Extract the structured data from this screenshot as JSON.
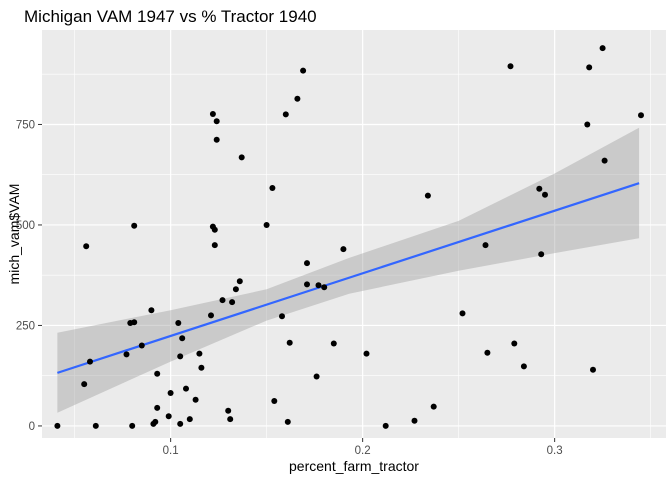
{
  "chart_data": {
    "type": "scatter",
    "title": "Michigan VAM 1947 vs % Tractor 1940",
    "xlabel": "percent_farm_tractor",
    "ylabel": "mich_vam$VAM",
    "xlim": [
      0.033,
      0.358
    ],
    "ylim": [
      -30,
      985
    ],
    "x_ticks": [
      0.1,
      0.2,
      0.3
    ],
    "x_tick_labels": [
      "0.1",
      "0.2",
      "0.3"
    ],
    "y_ticks": [
      0,
      250,
      500,
      750
    ],
    "y_tick_labels": [
      "0",
      "250",
      "500",
      "750"
    ],
    "grid": true,
    "legend": "none",
    "colors": {
      "panel": "#ebebeb",
      "grid_major": "#ffffff",
      "points": "#000000",
      "fit_line": "#3366ff",
      "confidence_band": "#999999"
    },
    "fit": {
      "method": "linear",
      "x": [
        0.041,
        0.344
      ],
      "y": [
        132,
        604
      ],
      "band": {
        "x": [
          0.041,
          0.1,
          0.15,
          0.193,
          0.25,
          0.3,
          0.344
        ],
        "lower": [
          33,
          160,
          262,
          329,
          386,
          430,
          467
        ],
        "upper": [
          232,
          288,
          340,
          418,
          510,
          628,
          742
        ]
      }
    },
    "points": [
      {
        "x": 0.041,
        "y": 0
      },
      {
        "x": 0.055,
        "y": 104
      },
      {
        "x": 0.056,
        "y": 447
      },
      {
        "x": 0.058,
        "y": 160
      },
      {
        "x": 0.061,
        "y": 0
      },
      {
        "x": 0.077,
        "y": 178
      },
      {
        "x": 0.079,
        "y": 256
      },
      {
        "x": 0.08,
        "y": 0
      },
      {
        "x": 0.081,
        "y": 498
      },
      {
        "x": 0.081,
        "y": 258
      },
      {
        "x": 0.085,
        "y": 200
      },
      {
        "x": 0.09,
        "y": 288
      },
      {
        "x": 0.091,
        "y": 5
      },
      {
        "x": 0.092,
        "y": 10
      },
      {
        "x": 0.093,
        "y": 45
      },
      {
        "x": 0.093,
        "y": 130
      },
      {
        "x": 0.099,
        "y": 24
      },
      {
        "x": 0.1,
        "y": 82
      },
      {
        "x": 0.104,
        "y": 256
      },
      {
        "x": 0.105,
        "y": 173
      },
      {
        "x": 0.105,
        "y": 5
      },
      {
        "x": 0.106,
        "y": 218
      },
      {
        "x": 0.108,
        "y": 93
      },
      {
        "x": 0.11,
        "y": 17
      },
      {
        "x": 0.113,
        "y": 65
      },
      {
        "x": 0.115,
        "y": 180
      },
      {
        "x": 0.116,
        "y": 145
      },
      {
        "x": 0.121,
        "y": 275
      },
      {
        "x": 0.122,
        "y": 776
      },
      {
        "x": 0.122,
        "y": 496
      },
      {
        "x": 0.123,
        "y": 450
      },
      {
        "x": 0.123,
        "y": 488
      },
      {
        "x": 0.124,
        "y": 758
      },
      {
        "x": 0.124,
        "y": 712
      },
      {
        "x": 0.127,
        "y": 313
      },
      {
        "x": 0.13,
        "y": 38
      },
      {
        "x": 0.131,
        "y": 17
      },
      {
        "x": 0.132,
        "y": 308
      },
      {
        "x": 0.134,
        "y": 340
      },
      {
        "x": 0.136,
        "y": 360
      },
      {
        "x": 0.137,
        "y": 668
      },
      {
        "x": 0.15,
        "y": 500
      },
      {
        "x": 0.153,
        "y": 592
      },
      {
        "x": 0.154,
        "y": 62
      },
      {
        "x": 0.158,
        "y": 273
      },
      {
        "x": 0.16,
        "y": 775
      },
      {
        "x": 0.161,
        "y": 10
      },
      {
        "x": 0.162,
        "y": 207
      },
      {
        "x": 0.166,
        "y": 814
      },
      {
        "x": 0.169,
        "y": 884
      },
      {
        "x": 0.171,
        "y": 352
      },
      {
        "x": 0.171,
        "y": 405
      },
      {
        "x": 0.176,
        "y": 123
      },
      {
        "x": 0.177,
        "y": 350
      },
      {
        "x": 0.18,
        "y": 345
      },
      {
        "x": 0.185,
        "y": 205
      },
      {
        "x": 0.19,
        "y": 440
      },
      {
        "x": 0.202,
        "y": 180
      },
      {
        "x": 0.212,
        "y": 0
      },
      {
        "x": 0.227,
        "y": 13
      },
      {
        "x": 0.234,
        "y": 573
      },
      {
        "x": 0.237,
        "y": 48
      },
      {
        "x": 0.252,
        "y": 280
      },
      {
        "x": 0.264,
        "y": 450
      },
      {
        "x": 0.265,
        "y": 182
      },
      {
        "x": 0.277,
        "y": 895
      },
      {
        "x": 0.279,
        "y": 205
      },
      {
        "x": 0.284,
        "y": 148
      },
      {
        "x": 0.292,
        "y": 590
      },
      {
        "x": 0.293,
        "y": 427
      },
      {
        "x": 0.295,
        "y": 575
      },
      {
        "x": 0.317,
        "y": 750
      },
      {
        "x": 0.318,
        "y": 892
      },
      {
        "x": 0.32,
        "y": 140
      },
      {
        "x": 0.325,
        "y": 940
      },
      {
        "x": 0.326,
        "y": 660
      },
      {
        "x": 0.345,
        "y": 773
      }
    ]
  }
}
